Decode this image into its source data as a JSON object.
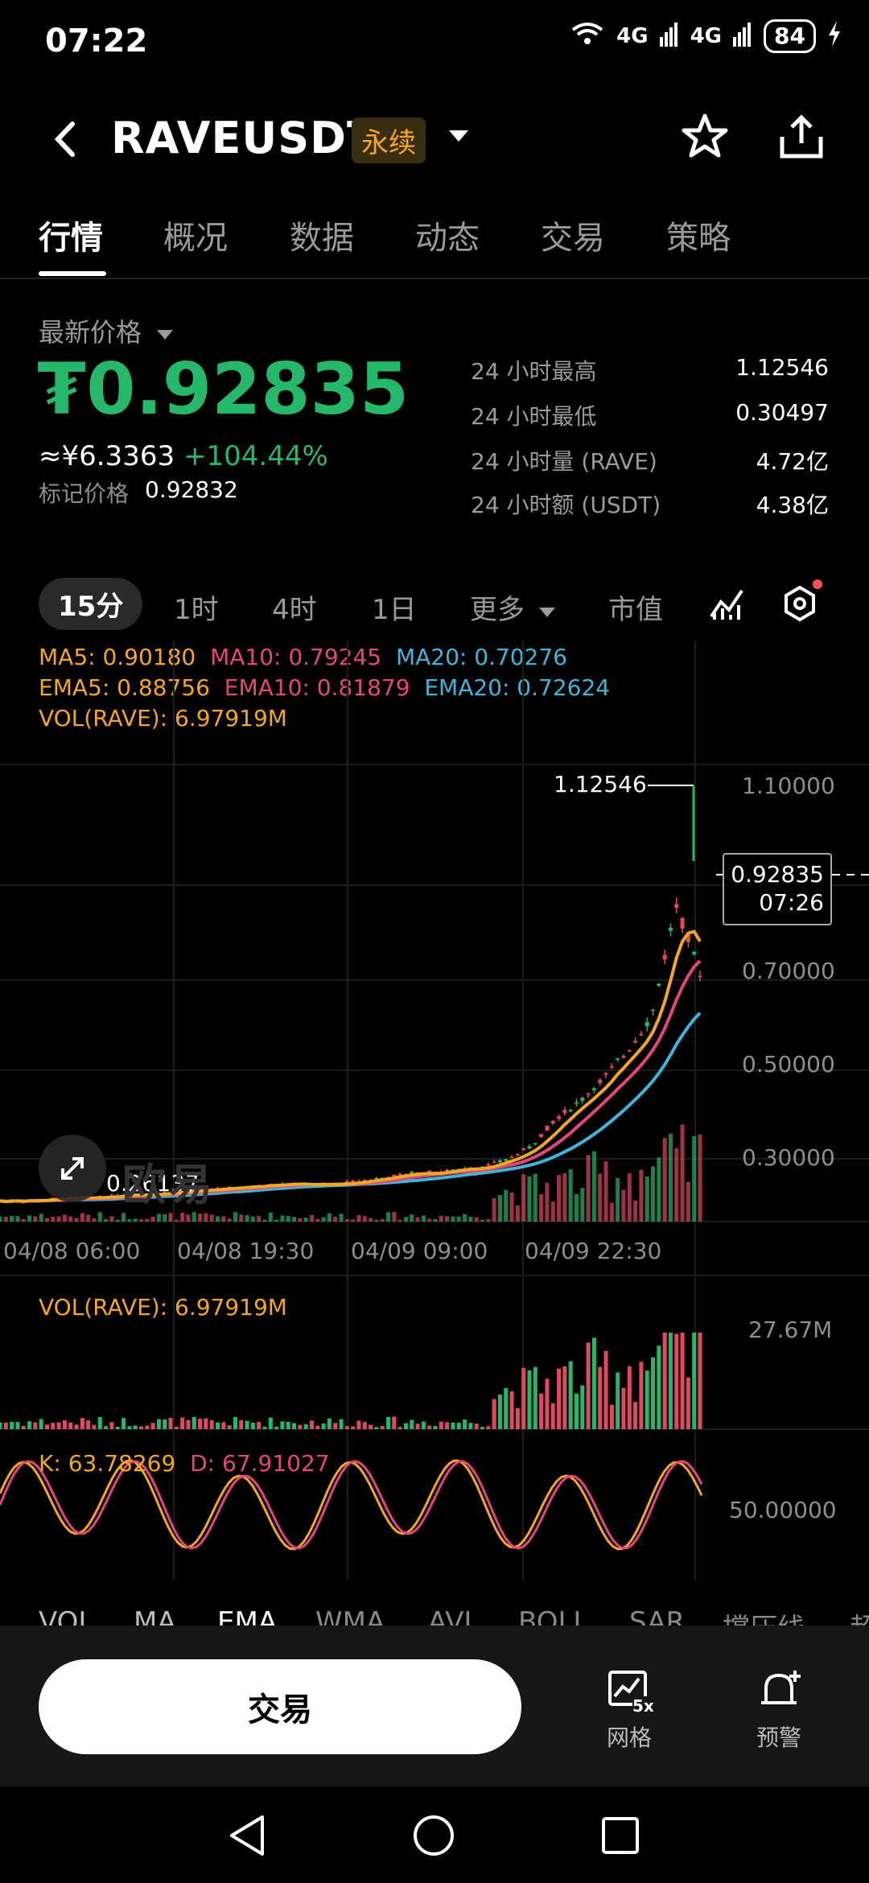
{
  "status_bar": {
    "time": "07:22",
    "battery": "84",
    "signal1": "4G",
    "signal2": "4G"
  },
  "header": {
    "symbol": "RAVEUSDT",
    "badge": "永续"
  },
  "tabs": [
    "行情",
    "概况",
    "数据",
    "动态",
    "交易",
    "策略"
  ],
  "price": {
    "label": "最新价格",
    "last": "₮0.92835",
    "cny": "≈¥6.3363",
    "change": "+104.44%",
    "mark_label": "标记价格",
    "mark_value": "0.92832"
  },
  "stats": [
    {
      "label": "24 小时最高",
      "value": "1.12546"
    },
    {
      "label": "24 小时最低",
      "value": "0.30497"
    },
    {
      "label": "24 小时量 (RAVE)",
      "value": "4.72亿"
    },
    {
      "label": "24 小时额 (USDT)",
      "value": "4.38亿"
    }
  ],
  "intervals": [
    "15分",
    "1时",
    "4时",
    "1日",
    "更多",
    "市值"
  ],
  "indicators": {
    "ma5": "MA5: 0.90180",
    "ma10": "MA10: 0.79245",
    "ma20": "MA20: 0.70276",
    "ema5": "EMA5: 0.88756",
    "ema10": "EMA10: 0.81879",
    "ema20": "EMA20: 0.72624",
    "vol": "VOL(RAVE): 6.97919M",
    "vol2": "VOL(RAVE): 6.97919M",
    "k": "K: 63.78269",
    "d": "D: 67.91027"
  },
  "main_chart": {
    "high_label": "1.12546",
    "low_label": "0.26137",
    "current_price": "0.92835",
    "countdown": "07:26",
    "watermark": "欧易",
    "y_ticks": [
      "1.10000",
      "0.70000",
      "0.50000",
      "0.30000"
    ],
    "x_ticks": [
      "04/08 06:00",
      "04/08 19:30",
      "04/09 09:00",
      "04/09 22:30"
    ]
  },
  "vol_chart": {
    "max_label": "27.67M"
  },
  "kdj_chart": {
    "mid_label": "50.00000"
  },
  "indicator_tabs": [
    "VOL",
    "MA",
    "EMA",
    "WMA",
    "AVL",
    "BOLL",
    "SAR",
    "撑压线",
    "超"
  ],
  "bottom": {
    "trade": "交易",
    "grid": "网格",
    "grid_badge": "5x",
    "alert": "预警"
  },
  "colors": {
    "green": "#25b86b",
    "red": "#e04a5f",
    "ma5": "#f5a623",
    "ma10": "#e5467a",
    "ma20": "#3fb6d9"
  },
  "chart_data": {
    "type": "candlestick-line",
    "x_labels": [
      "04/08 06:00",
      "04/08 19:30",
      "04/09 09:00",
      "04/09 22:30"
    ],
    "ylim": [
      0.2,
      1.2
    ],
    "price_path": [
      0.26,
      0.26,
      0.265,
      0.27,
      0.27,
      0.275,
      0.28,
      0.285,
      0.29,
      0.295,
      0.3,
      0.305,
      0.31,
      0.305,
      0.31,
      0.32,
      0.33,
      0.34,
      0.345,
      0.35,
      0.36,
      0.38,
      0.42,
      0.5,
      0.55,
      0.62,
      0.7,
      0.8,
      1.12546,
      0.92835
    ],
    "y_axis_labels": [
      "1.10000",
      "0.70000",
      "0.50000",
      "0.30000"
    ]
  }
}
